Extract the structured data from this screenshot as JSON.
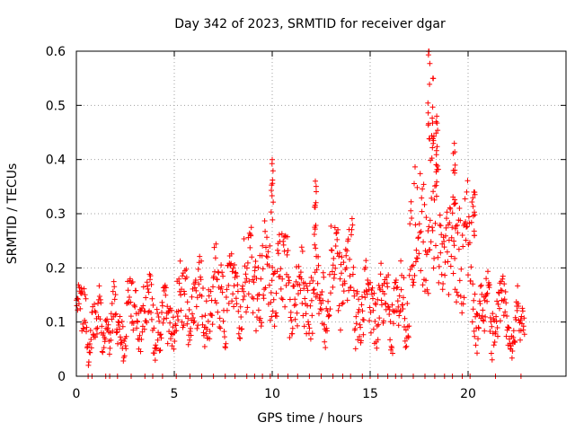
{
  "chart_data": {
    "type": "scatter",
    "title": "Day 342 of 2023, SRMTID for receiver dgar",
    "xlabel": "GPS time / hours",
    "ylabel": "SRMTID / TECUs",
    "xlim": [
      0,
      25
    ],
    "ylim": [
      0,
      0.6
    ],
    "x_ticks": [
      0,
      5,
      10,
      15,
      20
    ],
    "x_tick_labels": [
      "0",
      "5",
      "10",
      "15",
      "20"
    ],
    "y_ticks": [
      0,
      0.1,
      0.2,
      0.3,
      0.4,
      0.5,
      0.6
    ],
    "y_tick_labels": [
      "0",
      "0.1",
      "0.2",
      "0.3",
      "0.4",
      "0.5",
      "0.6"
    ],
    "grid": true,
    "marker": "plus",
    "series_color": "#ff0000",
    "baseline": [
      {
        "t_hours": [
          0,
          0.5
        ],
        "level": 0.11
      },
      {
        "t_hours": [
          0.5,
          2.5
        ],
        "level": 0.09
      },
      {
        "t_hours": [
          2.5,
          4.0
        ],
        "level": 0.12
      },
      {
        "t_hours": [
          4.0,
          5.0
        ],
        "level": 0.1
      },
      {
        "t_hours": [
          5.0,
          7.0
        ],
        "level": 0.13
      },
      {
        "t_hours": [
          7.0,
          8.5
        ],
        "level": 0.15
      },
      {
        "t_hours": [
          8.5,
          11.0
        ],
        "level": 0.18
      },
      {
        "t_hours": [
          11.0,
          13.0
        ],
        "level": 0.15
      },
      {
        "t_hours": [
          13.0,
          14.2
        ],
        "level": 0.19
      },
      {
        "t_hours": [
          14.2,
          17.0
        ],
        "level": 0.13
      },
      {
        "t_hours": [
          17.0,
          18.5
        ],
        "level": 0.27
      },
      {
        "t_hours": [
          18.5,
          20.2
        ],
        "level": 0.23
      },
      {
        "t_hours": [
          20.2,
          22.0
        ],
        "level": 0.12
      },
      {
        "t_hours": [
          22.0,
          23.0
        ],
        "level": 0.09
      }
    ],
    "peaks": [
      {
        "t": 10.0,
        "value": 0.4
      },
      {
        "t": 12.2,
        "value": 0.36
      },
      {
        "t": 18.0,
        "value": 0.6
      },
      {
        "t": 18.2,
        "value": 0.55
      },
      {
        "t": 18.4,
        "value": 0.48
      },
      {
        "t": 19.3,
        "value": 0.43
      },
      {
        "t": 20.3,
        "value": 0.34
      }
    ],
    "zero_points_t": [
      0.6,
      0.8,
      1.5,
      1.7,
      2.1,
      2.8,
      3.5,
      3.9,
      4.4,
      5.1,
      5.8,
      6.4,
      7.0,
      7.6,
      8.1,
      8.7,
      9.1,
      9.5,
      9.9,
      10.3,
      10.8,
      11.3,
      11.9,
      12.5,
      13.1,
      13.6,
      14.0,
      14.6,
      15.0,
      15.4,
      15.9,
      16.3,
      16.6,
      17.2,
      17.8,
      18.3,
      18.8,
      19.2,
      19.7,
      20.1,
      21.4,
      22.7
    ]
  }
}
